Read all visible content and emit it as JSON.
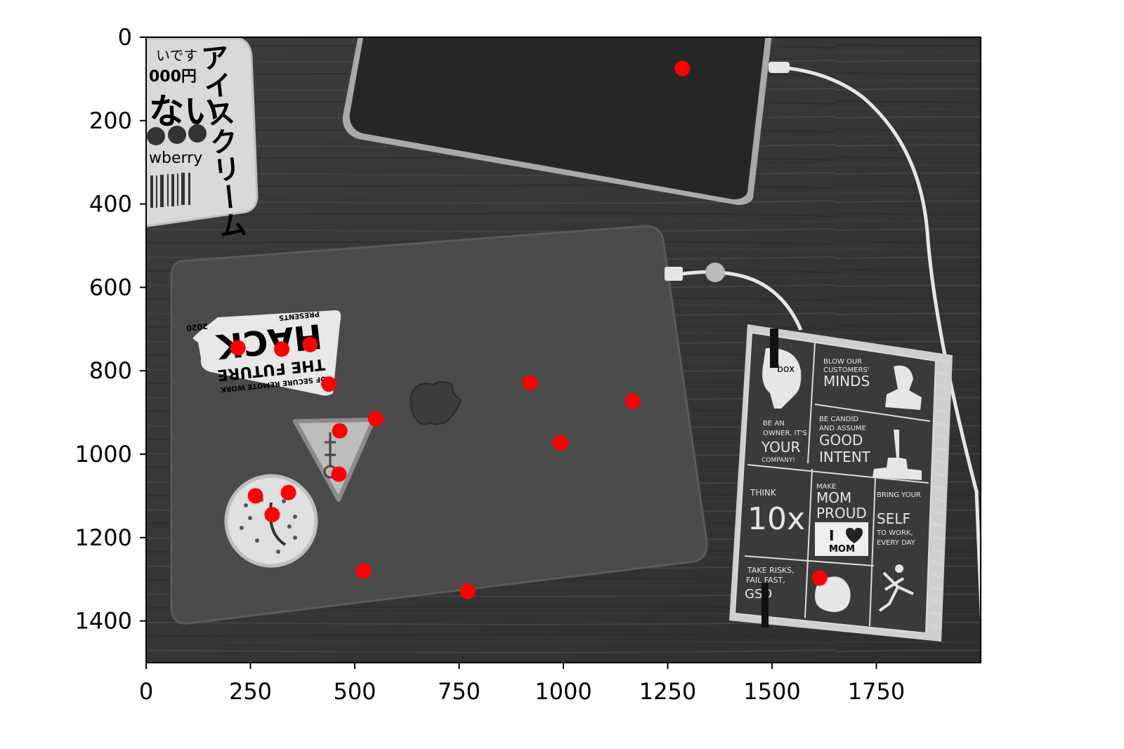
{
  "chart_data": {
    "type": "scatter",
    "title": "",
    "xlabel": "",
    "ylabel": "",
    "xlim": [
      0,
      2000
    ],
    "ylim": [
      1500,
      0
    ],
    "y_axis_inverted": true,
    "grid": false,
    "background": "grayscale photo: laptop with stickers, tablet, notebook on wooden desk",
    "x_ticks": [
      0,
      250,
      500,
      750,
      1000,
      1250,
      1500,
      1750
    ],
    "y_ticks": [
      0,
      200,
      400,
      600,
      800,
      1000,
      1200,
      1400
    ],
    "x_tick_labels": [
      "0",
      "250",
      "500",
      "750",
      "1000",
      "1250",
      "1500",
      "1750"
    ],
    "y_tick_labels": [
      "0",
      "200",
      "400",
      "600",
      "800",
      "1000",
      "1200",
      "1400"
    ],
    "marker_color": "#ff0000",
    "points": [
      {
        "x": 1285,
        "y": 75
      },
      {
        "x": 220,
        "y": 745
      },
      {
        "x": 325,
        "y": 748
      },
      {
        "x": 393,
        "y": 737
      },
      {
        "x": 438,
        "y": 832
      },
      {
        "x": 920,
        "y": 829
      },
      {
        "x": 1166,
        "y": 873
      },
      {
        "x": 550,
        "y": 915
      },
      {
        "x": 464,
        "y": 944
      },
      {
        "x": 993,
        "y": 972
      },
      {
        "x": 462,
        "y": 1048
      },
      {
        "x": 262,
        "y": 1100
      },
      {
        "x": 341,
        "y": 1092
      },
      {
        "x": 302,
        "y": 1145
      },
      {
        "x": 521,
        "y": 1280
      },
      {
        "x": 771,
        "y": 1329
      },
      {
        "x": 1614,
        "y": 1297
      }
    ]
  },
  "photo_text": {
    "top_left_card": [
      "いです",
      "000円",
      "wberry"
    ],
    "top_left_card_vertical": "アイスクリーム",
    "sticker_hack": [
      "THE FUTURE",
      "HACK",
      "OF SECURE REMOTE WORK",
      "2020",
      "PRESENTS"
    ],
    "notebook": {
      "brand": "box",
      "blow": [
        "BLOW OUR",
        "CUSTOMERS'",
        "MINDS"
      ],
      "owner": [
        "BE AN",
        "OWNER. IT'S",
        "YOUR",
        "COMPANY!"
      ],
      "candid": [
        "BE CANDID",
        "AND ASSUME",
        "GOOD",
        "INTENT"
      ],
      "think": [
        "THINK",
        "10x"
      ],
      "mom": [
        "MAKE",
        "MOM",
        "PROUD",
        "I",
        "MOM"
      ],
      "self": [
        "BRING YOUR",
        "SELF",
        "TO WORK,",
        "EVERY DAY"
      ],
      "risks": [
        "TAKE RISKS,",
        "FAIL FAST,",
        "GSD"
      ]
    }
  }
}
